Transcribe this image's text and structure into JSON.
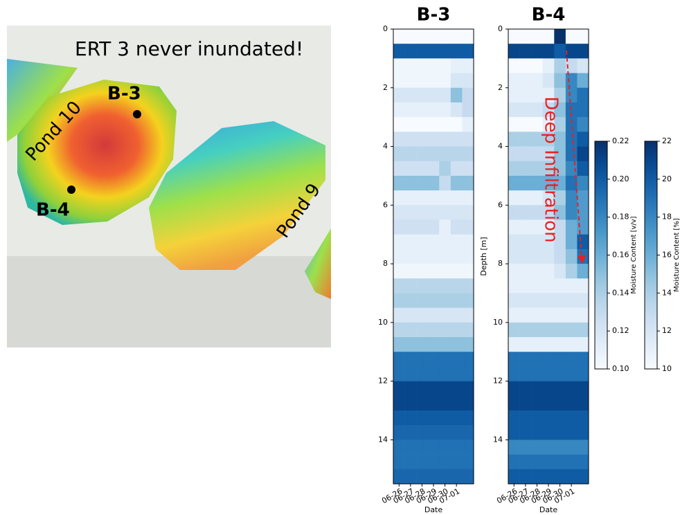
{
  "map": {
    "caption": "ERT 3 never inundated!",
    "ponds": [
      "Pond 10",
      "Pond 9"
    ],
    "boreholes": [
      "B-3",
      "B-4"
    ]
  },
  "chart_data": [
    {
      "type": "heatmap",
      "title": "B-3",
      "xlabel": "Date",
      "cmap": "Blues",
      "y_inverted": true,
      "categories": [
        "06-26",
        "06-27",
        "06-28",
        "06-29",
        "06-30",
        "07-01",
        null
      ],
      "ylim": [
        0,
        15.5
      ],
      "yticks": [
        0,
        2,
        4,
        6,
        8,
        10,
        12,
        14
      ],
      "zlim": [
        0.1,
        0.22
      ],
      "z": [
        [
          0.1,
          0.1,
          0.1,
          0.1,
          0.1,
          0.1,
          0.1
        ],
        [
          0.2,
          0.2,
          0.2,
          0.2,
          0.2,
          0.2,
          0.2
        ],
        [
          0.105,
          0.105,
          0.105,
          0.105,
          0.105,
          0.11,
          0.11
        ],
        [
          0.105,
          0.105,
          0.105,
          0.105,
          0.105,
          0.12,
          0.12
        ],
        [
          0.12,
          0.12,
          0.12,
          0.12,
          0.12,
          0.15,
          0.13
        ],
        [
          0.11,
          0.11,
          0.11,
          0.11,
          0.11,
          0.12,
          0.13
        ],
        [
          0.1,
          0.1,
          0.1,
          0.1,
          0.1,
          0.1,
          0.11
        ],
        [
          0.125,
          0.125,
          0.125,
          0.125,
          0.125,
          0.125,
          0.125
        ],
        [
          0.135,
          0.135,
          0.135,
          0.135,
          0.135,
          0.135,
          0.135
        ],
        [
          0.125,
          0.125,
          0.125,
          0.125,
          0.14,
          0.125,
          0.125
        ],
        [
          0.15,
          0.15,
          0.15,
          0.15,
          0.13,
          0.15,
          0.15
        ],
        [
          0.11,
          0.11,
          0.11,
          0.11,
          0.11,
          0.11,
          0.11
        ],
        [
          0.12,
          0.12,
          0.12,
          0.12,
          0.12,
          0.12,
          0.12
        ],
        [
          0.125,
          0.125,
          0.125,
          0.125,
          0.11,
          0.125,
          0.125
        ],
        [
          0.11,
          0.11,
          0.11,
          0.11,
          0.11,
          0.11,
          0.11
        ],
        [
          0.11,
          0.11,
          0.11,
          0.11,
          0.11,
          0.11,
          0.11
        ],
        [
          0.105,
          0.105,
          0.105,
          0.105,
          0.105,
          0.105,
          0.105
        ],
        [
          0.135,
          0.135,
          0.135,
          0.135,
          0.135,
          0.135,
          0.135
        ],
        [
          0.14,
          0.14,
          0.14,
          0.14,
          0.14,
          0.14,
          0.14
        ],
        [
          0.12,
          0.12,
          0.12,
          0.12,
          0.12,
          0.12,
          0.12
        ],
        [
          0.135,
          0.135,
          0.135,
          0.135,
          0.135,
          0.135,
          0.135
        ],
        [
          0.15,
          0.15,
          0.15,
          0.15,
          0.15,
          0.15,
          0.15
        ],
        [
          0.19,
          0.19,
          0.19,
          0.19,
          0.19,
          0.19,
          0.19
        ],
        [
          0.19,
          0.19,
          0.19,
          0.19,
          0.19,
          0.19,
          0.19
        ],
        [
          0.21,
          0.21,
          0.21,
          0.21,
          0.21,
          0.21,
          0.21
        ],
        [
          0.21,
          0.21,
          0.21,
          0.21,
          0.21,
          0.21,
          0.21
        ],
        [
          0.2,
          0.2,
          0.2,
          0.2,
          0.2,
          0.2,
          0.2
        ],
        [
          0.195,
          0.195,
          0.195,
          0.195,
          0.195,
          0.195,
          0.195
        ],
        [
          0.19,
          0.19,
          0.19,
          0.19,
          0.19,
          0.19,
          0.19
        ],
        [
          0.19,
          0.19,
          0.19,
          0.19,
          0.19,
          0.19,
          0.19
        ],
        [
          0.195,
          0.195,
          0.195,
          0.195,
          0.195,
          0.195,
          0.195
        ]
      ]
    },
    {
      "type": "heatmap",
      "title": "B-4",
      "xlabel": "Date",
      "ylabel": "Depth [m]",
      "cmap": "Blues",
      "y_inverted": true,
      "annotation": "Deep Infiltration",
      "categories": [
        "06-26",
        "06-27",
        "06-28",
        "06-29",
        "06-30",
        "07-01",
        null
      ],
      "ylim": [
        0,
        15.5
      ],
      "yticks": [
        0,
        2,
        4,
        6,
        8,
        10,
        12,
        14
      ],
      "zlim": [
        0.1,
        0.22
      ],
      "z": [
        [
          0.1,
          0.1,
          0.1,
          0.1,
          0.22,
          0.1,
          0.1
        ],
        [
          0.21,
          0.21,
          0.21,
          0.21,
          0.2,
          0.21,
          0.21
        ],
        [
          0.1,
          0.1,
          0.1,
          0.11,
          0.14,
          0.13,
          0.12
        ],
        [
          0.11,
          0.11,
          0.11,
          0.12,
          0.15,
          0.18,
          0.16
        ],
        [
          0.11,
          0.11,
          0.11,
          0.11,
          0.14,
          0.18,
          0.19
        ],
        [
          0.12,
          0.12,
          0.12,
          0.13,
          0.15,
          0.19,
          0.19
        ],
        [
          0.1,
          0.1,
          0.1,
          0.11,
          0.14,
          0.19,
          0.18
        ],
        [
          0.14,
          0.14,
          0.14,
          0.14,
          0.15,
          0.19,
          0.2
        ],
        [
          0.13,
          0.13,
          0.13,
          0.13,
          0.15,
          0.19,
          0.21
        ],
        [
          0.14,
          0.14,
          0.14,
          0.14,
          0.15,
          0.18,
          0.2
        ],
        [
          0.16,
          0.16,
          0.16,
          0.16,
          0.16,
          0.19,
          0.18
        ],
        [
          0.11,
          0.11,
          0.11,
          0.12,
          0.14,
          0.18,
          0.17
        ],
        [
          0.13,
          0.13,
          0.13,
          0.13,
          0.15,
          0.18,
          0.17
        ],
        [
          0.11,
          0.11,
          0.11,
          0.11,
          0.13,
          0.16,
          0.17
        ],
        [
          0.12,
          0.12,
          0.12,
          0.12,
          0.13,
          0.16,
          0.2
        ],
        [
          0.12,
          0.12,
          0.12,
          0.12,
          0.13,
          0.15,
          0.19
        ],
        [
          0.11,
          0.11,
          0.11,
          0.11,
          0.12,
          0.14,
          0.16
        ],
        [
          0.11,
          0.11,
          0.11,
          0.11,
          0.11,
          0.11,
          0.11
        ],
        [
          0.12,
          0.12,
          0.12,
          0.12,
          0.12,
          0.12,
          0.12
        ],
        [
          0.11,
          0.11,
          0.11,
          0.11,
          0.11,
          0.11,
          0.11
        ],
        [
          0.14,
          0.14,
          0.14,
          0.14,
          0.14,
          0.14,
          0.14
        ],
        [
          0.11,
          0.11,
          0.11,
          0.11,
          0.11,
          0.11,
          0.11
        ],
        [
          0.19,
          0.19,
          0.19,
          0.19,
          0.19,
          0.19,
          0.19
        ],
        [
          0.19,
          0.19,
          0.19,
          0.19,
          0.19,
          0.19,
          0.19
        ],
        [
          0.21,
          0.21,
          0.21,
          0.21,
          0.21,
          0.21,
          0.21
        ],
        [
          0.21,
          0.21,
          0.21,
          0.21,
          0.21,
          0.21,
          0.21
        ],
        [
          0.2,
          0.2,
          0.2,
          0.2,
          0.2,
          0.2,
          0.2
        ],
        [
          0.2,
          0.2,
          0.2,
          0.2,
          0.2,
          0.2,
          0.2
        ],
        [
          0.18,
          0.18,
          0.18,
          0.18,
          0.18,
          0.18,
          0.18
        ],
        [
          0.19,
          0.19,
          0.19,
          0.19,
          0.19,
          0.19,
          0.19
        ],
        [
          0.2,
          0.2,
          0.2,
          0.2,
          0.2,
          0.2,
          0.2
        ]
      ]
    }
  ],
  "colorbars": [
    {
      "label": "Moisture Content [v/v]",
      "cmap": "Blues",
      "ylim": [
        0.1,
        0.22
      ],
      "yticks": [
        {
          "value": 0.1,
          "label": "0.10"
        },
        0.12,
        0.14,
        0.16,
        0.18,
        {
          "value": 0.2,
          "label": "0.20"
        },
        0.22
      ]
    },
    {
      "label": "Moisture Content [%]",
      "cmap": "Blues",
      "ylim": [
        10,
        22
      ],
      "yticks": [
        10,
        12,
        14,
        16,
        18,
        20,
        22
      ]
    }
  ]
}
